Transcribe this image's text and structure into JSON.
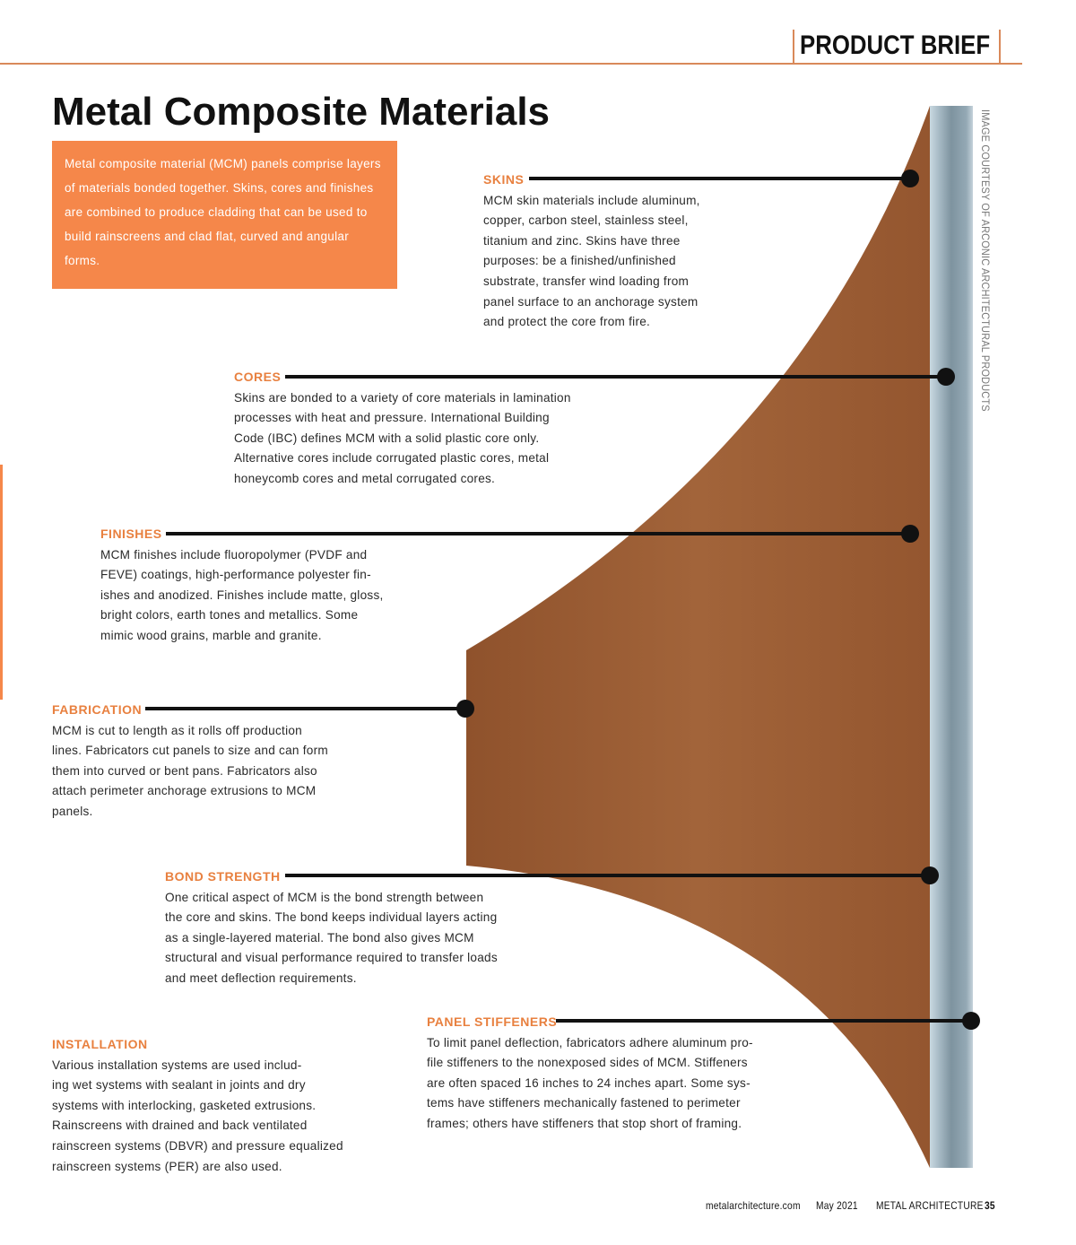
{
  "header": {
    "section_label": "PRODUCT BRIEF"
  },
  "title": "Metal Composite Materials",
  "intro": "Metal composite material (MCM) panels comprise layers of materials bonded together. Skins, cores and finishes are combined to produce cladding that can be used to build rainscreens and clad flat, curved and angular forms.",
  "sections": [
    {
      "heading": "SKINS",
      "lines": [
        "MCM skin materials include aluminum,",
        "copper, carbon steel, stainless steel,",
        "titanium and zinc. Skins have three",
        "purposes: be a finished/unfinished",
        "substrate, transfer wind loading from",
        "panel surface to an anchorage system",
        "and protect the core from fire."
      ]
    },
    {
      "heading": "CORES",
      "lines": [
        "Skins are bonded to a variety of core materials in lamination",
        "processes with heat and pressure. International Building",
        "Code (IBC) defines MCM with a solid plastic core only.",
        "Alternative cores include corrugated plastic cores, metal",
        "honeycomb cores and metal corrugated cores."
      ]
    },
    {
      "heading": "FINISHES",
      "lines": [
        "MCM finishes include fluoropolymer (PVDF and",
        "FEVE) coatings, high-performance polyester fin-",
        "ishes and anodized. Finishes include matte, gloss,",
        "bright colors, earth tones and metallics. Some",
        "mimic wood grains, marble and granite."
      ]
    },
    {
      "heading": "FABRICATION",
      "lines": [
        "MCM is cut to length as it rolls off production",
        "lines. Fabricators cut panels to size and can form",
        "them into curved or bent pans. Fabricators also",
        "attach perimeter anchorage extrusions to MCM",
        "panels."
      ]
    },
    {
      "heading": "BOND STRENGTH",
      "lines": [
        "One critical aspect of MCM is the bond strength between",
        "the core and skins. The bond keeps individual layers acting",
        "as a single-layered material. The bond also gives MCM",
        "structural and visual performance required to transfer loads",
        "and meet deflection requirements."
      ]
    },
    {
      "heading": "PANEL STIFFENERS",
      "lines": [
        "To limit panel deflection, fabricators adhere aluminum pro-",
        "file stiffeners to the nonexposed sides of MCM. Stiffeners",
        "are often spaced 16 inches to 24 inches apart. Some sys-",
        "tems have stiffeners mechanically fastened to perimeter",
        "frames; others have stiffeners that stop short of framing."
      ]
    },
    {
      "heading": "INSTALLATION",
      "lines": [
        "Various installation systems are used includ-",
        "ing wet systems with sealant in joints and dry",
        "systems with interlocking, gasketed extrusions.",
        "Rainscreens with drained and back ventilated",
        "rainscreen systems (DBVR) and pressure equalized",
        "rainscreen systems (PER) are also used."
      ]
    }
  ],
  "image_credit": "IMAGE COURTESY OF ARCONIC ARCHITECTURAL PRODUCTS",
  "footer": {
    "website": "metalarchitecture.com",
    "issue": "May 2021",
    "magazine": "METAL ARCHITECTURE",
    "page": "35"
  },
  "colors": {
    "accent": "#f5874a",
    "heading": "#e8803f",
    "wood": "#9a5a33",
    "metal": "#8fa3b0"
  }
}
